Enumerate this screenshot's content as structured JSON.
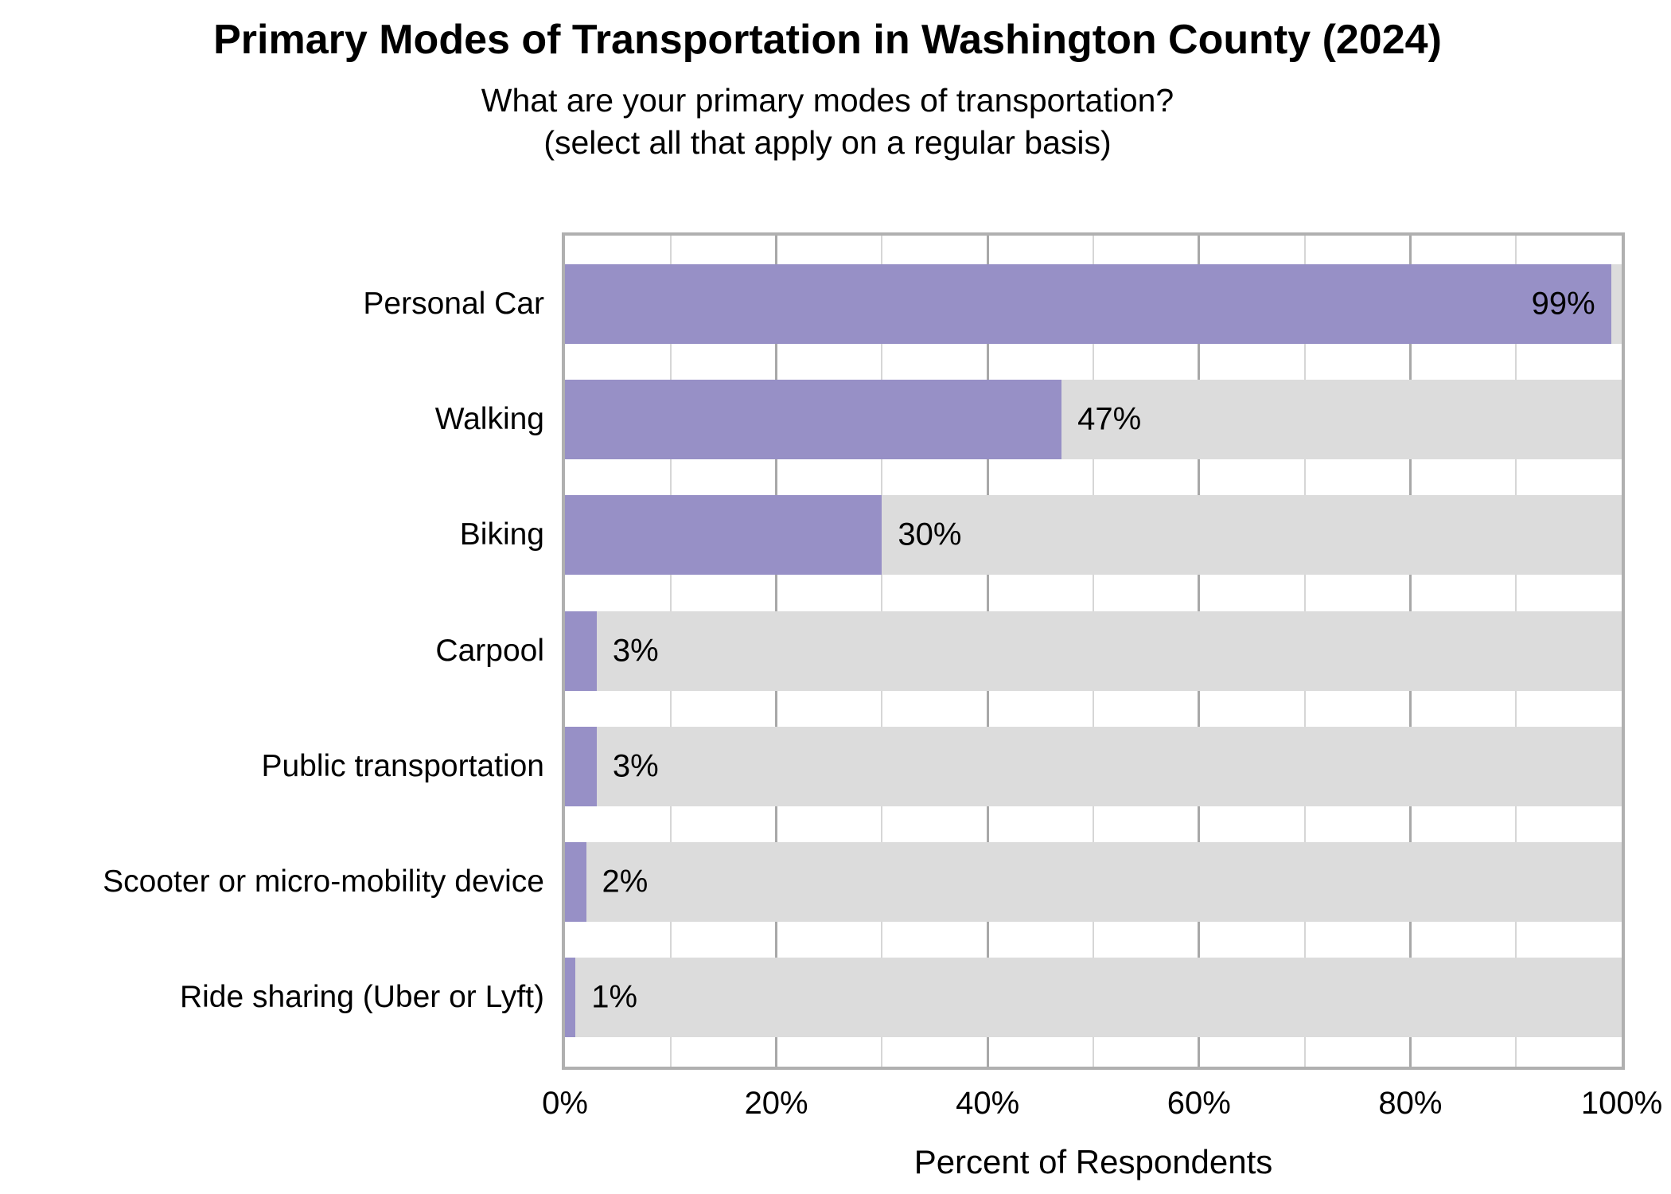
{
  "chart_data": {
    "type": "bar",
    "orientation": "horizontal",
    "title": "Primary Modes of Transportation in Washington County (2024)",
    "subtitle_line1": "What are your primary modes of transportation?",
    "subtitle_line2": "(select all that apply on a regular basis)",
    "xlabel": "Percent of Respondents",
    "xlim": [
      0,
      100
    ],
    "x_major_ticks": [
      0,
      20,
      40,
      60,
      80,
      100
    ],
    "x_tick_labels": [
      "0%",
      "20%",
      "40%",
      "60%",
      "80%",
      "100%"
    ],
    "x_minor_gridlines": [
      10,
      30,
      50,
      70,
      90
    ],
    "grid": "vertical gridlines; light minor lines every 10%, darker major lines every 20%; full-width gray track behind each bar",
    "legend": "none",
    "categories": [
      "Personal Car",
      "Walking",
      "Biking",
      "Carpool",
      "Public transportation",
      "Scooter or micro-mobility device",
      "Ride sharing (Uber or Lyft)"
    ],
    "values": [
      99,
      47,
      30,
      3,
      3,
      2,
      1
    ],
    "value_labels": [
      "99%",
      "47%",
      "30%",
      "3%",
      "3%",
      "2%",
      "1%"
    ],
    "value_label_placement": [
      "inside-end",
      "outside",
      "outside",
      "outside",
      "outside",
      "outside",
      "outside"
    ],
    "colors": {
      "bar": "#9790c6",
      "track": "#dcdcdc",
      "grid_major": "#a8a8a8",
      "grid_minor": "#d6d6d6",
      "axis_border": "#b0b0b0",
      "text": "#000000",
      "background": "#ffffff"
    }
  }
}
